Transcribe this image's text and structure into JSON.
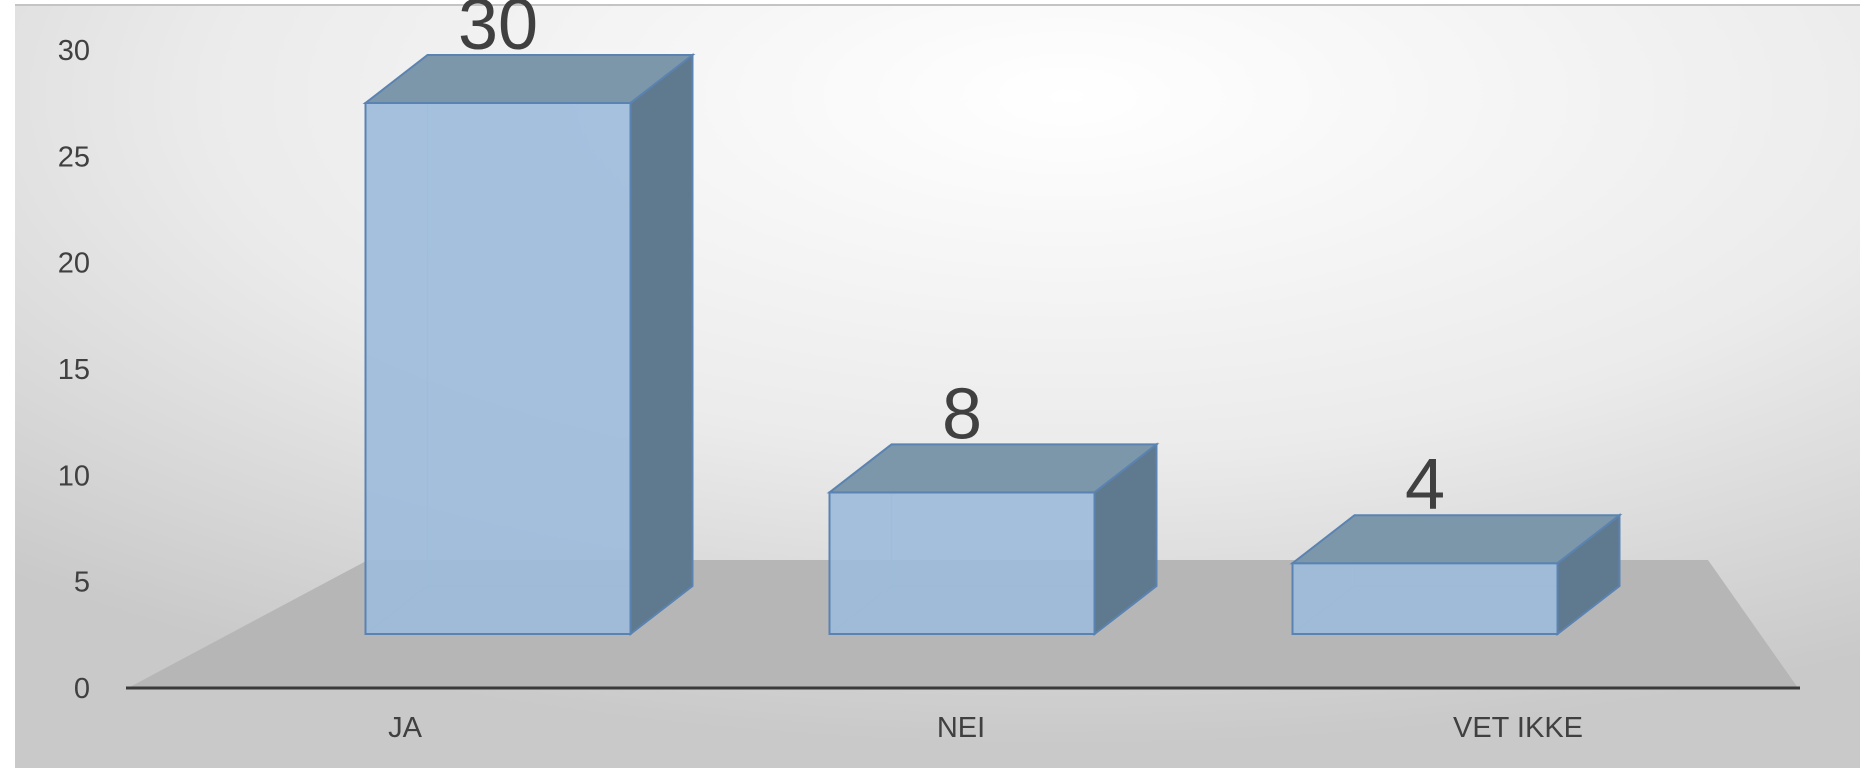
{
  "chart_data": {
    "type": "bar",
    "categories": [
      "JA",
      "NEI",
      "VET IKKE"
    ],
    "values": [
      30,
      8,
      4
    ],
    "data_labels": [
      "30",
      "8",
      "4"
    ],
    "title": "",
    "xlabel": "",
    "ylabel": "",
    "ylim": [
      0,
      30
    ],
    "y_ticks": [
      "0",
      "5",
      "10",
      "15",
      "20",
      "25",
      "30"
    ],
    "grid": false,
    "legend": "none",
    "style": "3d",
    "colors": {
      "bar_front": "#9dbcdb",
      "bar_side": "#5f7a8e",
      "bar_stroke": "#5b83b1",
      "floor": "#b5b5b5",
      "text": "#404040"
    }
  }
}
